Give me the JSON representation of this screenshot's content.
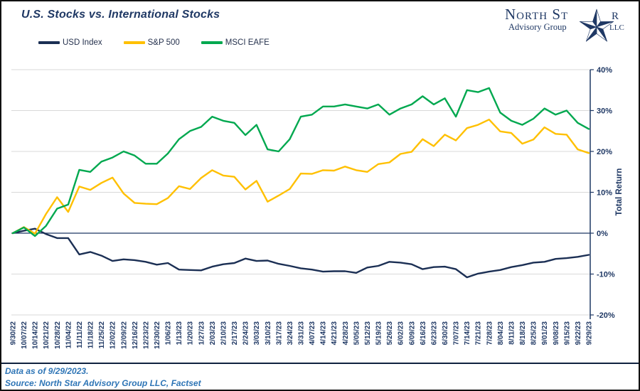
{
  "header": {
    "title": "U.S. Stocks vs. International Stocks"
  },
  "logo": {
    "name_pre_star": "North St",
    "name_post_star": "r",
    "subtitle": "Advisory Group",
    "suffix": "LLC"
  },
  "footer": {
    "line1": "Data as of 9/29/2023.",
    "line2": "Source: North Star Advisory Group LLC, Factset"
  },
  "colors": {
    "navy_text": "#1F3864",
    "axis": "#1F3864",
    "gridline": "#D9D9D9",
    "footer_blue": "#2E75B6",
    "frame_border": "#111111"
  },
  "chart_data": {
    "type": "line",
    "title": "U.S. Stocks vs. International Stocks",
    "xlabel": "",
    "ylabel": "Total Return",
    "ylim": [
      -20,
      40
    ],
    "yticks": [
      40,
      30,
      20,
      10,
      0,
      -10,
      -20
    ],
    "ytick_suffix": "%",
    "grid": true,
    "legend_position": "top-left",
    "categories": [
      "9/30/22",
      "10/07/22",
      "10/14/22",
      "10/21/22",
      "10/28/22",
      "11/04/22",
      "11/11/22",
      "11/18/22",
      "11/25/22",
      "12/02/22",
      "12/09/22",
      "12/16/22",
      "12/23/22",
      "12/30/22",
      "1/06/23",
      "1/13/23",
      "1/20/23",
      "1/27/23",
      "2/03/23",
      "2/10/23",
      "2/17/23",
      "2/24/23",
      "3/03/23",
      "3/10/23",
      "3/17/23",
      "3/24/23",
      "3/31/23",
      "4/07/23",
      "4/14/23",
      "4/21/23",
      "4/28/23",
      "5/05/23",
      "5/12/23",
      "5/19/23",
      "5/26/23",
      "6/02/23",
      "6/09/23",
      "6/16/23",
      "6/23/23",
      "6/30/23",
      "7/07/23",
      "7/14/23",
      "7/21/23",
      "7/28/23",
      "8/04/23",
      "8/11/23",
      "8/18/23",
      "8/25/23",
      "9/01/23",
      "9/08/23",
      "9/15/23",
      "9/22/23",
      "9/29/23"
    ],
    "series": [
      {
        "name": "USD Index",
        "color": "#1B2F54",
        "values": [
          0,
          0.6,
          1.1,
          -0.2,
          -1.2,
          -1.2,
          -5.2,
          -4.6,
          -5.5,
          -6.8,
          -6.4,
          -6.6,
          -7.0,
          -7.7,
          -7.3,
          -8.9,
          -9.0,
          -9.1,
          -8.2,
          -7.6,
          -7.3,
          -6.2,
          -6.8,
          -6.7,
          -7.5,
          -8.0,
          -8.6,
          -8.9,
          -9.4,
          -9.3,
          -9.3,
          -9.7,
          -8.4,
          -8.0,
          -7.0,
          -7.2,
          -7.6,
          -8.8,
          -8.3,
          -8.2,
          -8.8,
          -10.8,
          -9.9,
          -9.4,
          -9.0,
          -8.3,
          -7.8,
          -7.2,
          -7.0,
          -6.3,
          -6.1,
          -5.8,
          -5.3
        ]
      },
      {
        "name": "S&P 500",
        "color": "#FFC000",
        "values": [
          0,
          1.5,
          -0.1,
          4.7,
          8.8,
          5.2,
          11.4,
          10.6,
          12.3,
          13.6,
          9.7,
          7.4,
          7.2,
          7.1,
          8.6,
          11.5,
          10.8,
          13.5,
          15.4,
          14.1,
          13.8,
          10.7,
          12.8,
          7.7,
          9.2,
          10.8,
          14.6,
          14.5,
          15.4,
          15.3,
          16.3,
          15.4,
          15.0,
          16.9,
          17.3,
          19.4,
          19.9,
          23.0,
          21.3,
          24.1,
          22.7,
          25.7,
          26.5,
          27.8,
          24.9,
          24.5,
          21.9,
          22.9,
          25.9,
          24.3,
          24.1,
          20.5,
          19.6
        ]
      },
      {
        "name": "MSCI EAFE",
        "color": "#00A84F",
        "values": [
          0,
          1.4,
          -0.7,
          1.8,
          6.0,
          7.0,
          15.5,
          15.0,
          17.5,
          18.5,
          20.0,
          19.0,
          17.0,
          17.0,
          19.5,
          23.0,
          25.0,
          26.0,
          28.5,
          27.5,
          27.0,
          24.0,
          26.5,
          20.5,
          20.0,
          23.0,
          28.5,
          29.0,
          31.0,
          31.0,
          31.5,
          31.0,
          30.5,
          31.5,
          29.0,
          30.5,
          31.5,
          33.5,
          31.5,
          33.0,
          28.5,
          35.0,
          34.5,
          35.5,
          29.5,
          27.5,
          26.5,
          28.0,
          30.5,
          29.0,
          30.0,
          27.0,
          25.5
        ]
      }
    ]
  }
}
